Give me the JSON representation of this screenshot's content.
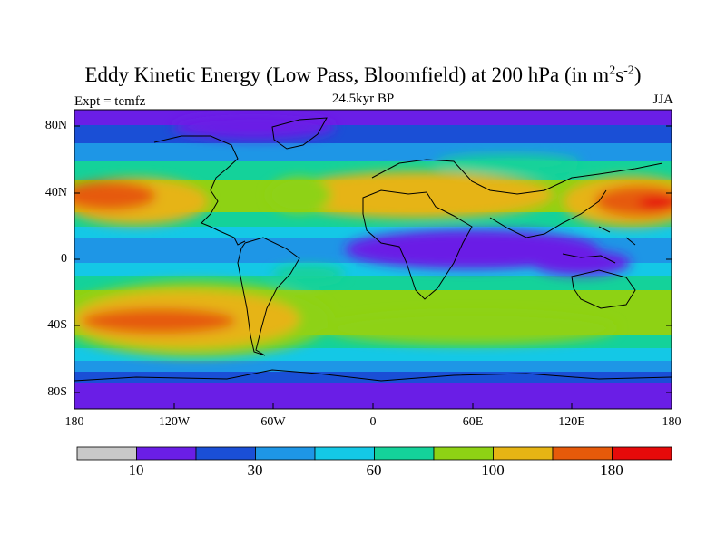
{
  "title": {
    "main": "Eddy Kinetic Energy (Low Pass, Bloomfield) at 200 hPa (in m",
    "sup1": "2",
    "mid": "s",
    "sup2": "-2",
    "end": ")"
  },
  "subtitle": "24.5kyr BP",
  "left_label": "Expt = temfz",
  "right_label": "JJA",
  "y_ticks": [
    "80N",
    "40N",
    "0",
    "40S",
    "80S"
  ],
  "x_ticks": [
    "180",
    "120W",
    "60W",
    "0",
    "60E",
    "120E",
    "180"
  ],
  "colorbar": {
    "colors": [
      "#c8c8c8",
      "#6a1ee6",
      "#1a4fd6",
      "#1e96e6",
      "#14c8e6",
      "#14d29a",
      "#8ed214",
      "#e6b414",
      "#e65a0a",
      "#e60a0a"
    ],
    "tick_labels": [
      "10",
      "30",
      "60",
      "100",
      "180"
    ]
  }
}
